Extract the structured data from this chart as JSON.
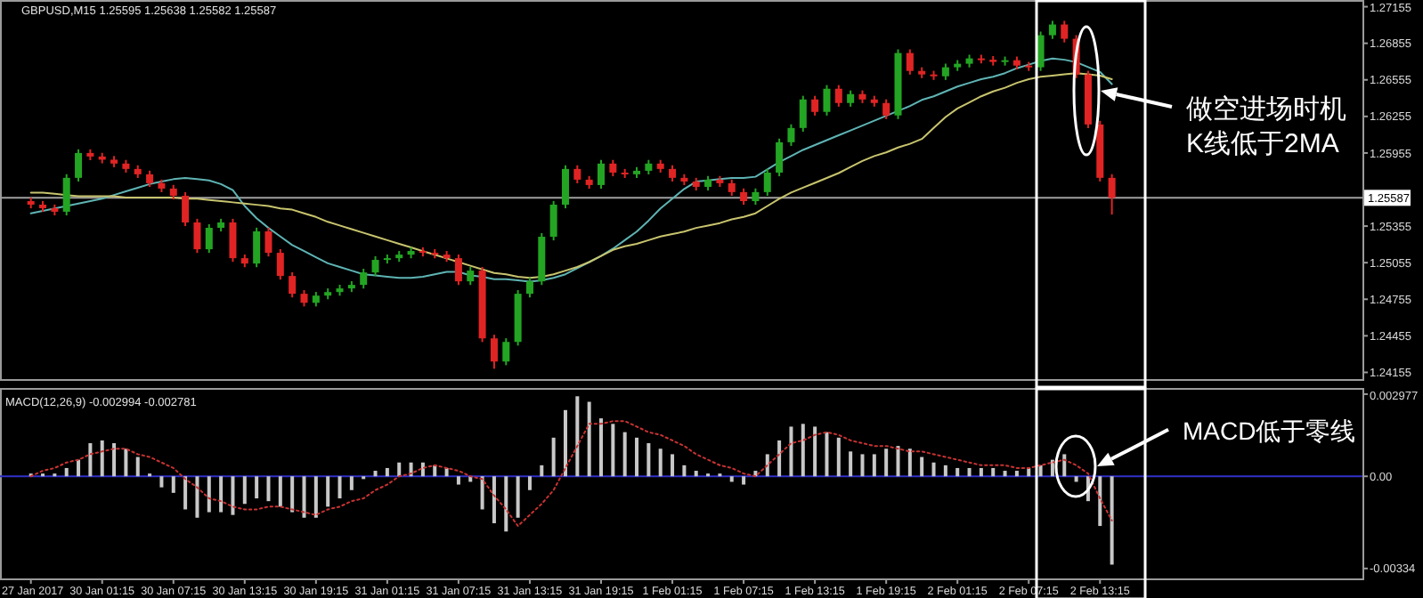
{
  "chart_data": [
    {
      "type": "candlestick",
      "title": "GBPUSD,M15  1.25595 1.25638 1.25582 1.25587",
      "categories": [
        null,
        null,
        null,
        null,
        null,
        null,
        null,
        null,
        null,
        null,
        null,
        null,
        null,
        null,
        null,
        null,
        null,
        null,
        null,
        null,
        null,
        null,
        null,
        null,
        null,
        null,
        null,
        null,
        null,
        null,
        null,
        null,
        null,
        null,
        null,
        null,
        null,
        null,
        null,
        null,
        null,
        null,
        null,
        null,
        null,
        null,
        null,
        null,
        null,
        null,
        null,
        null,
        null,
        null,
        null,
        null,
        null,
        null,
        null,
        null,
        null,
        null,
        null,
        null,
        null,
        null,
        null,
        null,
        null,
        null,
        null,
        null,
        null,
        null,
        null,
        null,
        null,
        null,
        null,
        null,
        null,
        null,
        null,
        null,
        null,
        null,
        null,
        null,
        null,
        null,
        null,
        null
      ],
      "ohlc": [
        [
          1.2556,
          1.2559,
          1.25501,
          1.25531
        ],
        [
          1.25531,
          1.25561,
          1.25472,
          1.25502
        ],
        [
          1.25502,
          1.25532,
          1.25443,
          1.25473
        ],
        [
          1.25473,
          1.25781,
          1.25443,
          1.25751
        ],
        [
          1.25751,
          1.25985,
          1.25721,
          1.25955
        ],
        [
          1.25955,
          1.25985,
          1.25896,
          1.25926
        ],
        [
          1.25926,
          1.25956,
          1.2587,
          1.259
        ],
        [
          1.259,
          1.2593,
          1.25838,
          1.25868
        ],
        [
          1.25868,
          1.25898,
          1.25794,
          1.25824
        ],
        [
          1.25824,
          1.25854,
          1.2575,
          1.2578
        ],
        [
          1.2578,
          1.2581,
          1.25677,
          1.25707
        ],
        [
          1.25707,
          1.25737,
          1.25633,
          1.25663
        ],
        [
          1.25663,
          1.25693,
          1.25574,
          1.25604
        ],
        [
          1.25604,
          1.25634,
          1.25355,
          1.25385
        ],
        [
          1.25385,
          1.25415,
          1.25135,
          1.25165
        ],
        [
          1.25165,
          1.25371,
          1.25135,
          1.25341
        ],
        [
          1.25341,
          1.25415,
          1.25311,
          1.25385
        ],
        [
          1.25385,
          1.25415,
          1.25062,
          1.25092
        ],
        [
          1.25092,
          1.25122,
          1.25018,
          1.25048
        ],
        [
          1.25048,
          1.25342,
          1.25018,
          1.25312
        ],
        [
          1.25312,
          1.25342,
          1.25106,
          1.25136
        ],
        [
          1.25136,
          1.25166,
          1.24916,
          1.24946
        ],
        [
          1.24946,
          1.24976,
          1.2477,
          1.248
        ],
        [
          1.248,
          1.2483,
          1.24696,
          1.24726
        ],
        [
          1.24726,
          1.24815,
          1.24696,
          1.24785
        ],
        [
          1.24785,
          1.24844,
          1.24755,
          1.24814
        ],
        [
          1.24814,
          1.24874,
          1.24784,
          1.24844
        ],
        [
          1.24844,
          1.24903,
          1.24814,
          1.24873
        ],
        [
          1.24873,
          1.25005,
          1.24843,
          1.24975
        ],
        [
          1.24975,
          1.25108,
          1.24945,
          1.25078
        ],
        [
          1.25078,
          1.25122,
          1.25048,
          1.25092
        ],
        [
          1.25092,
          1.25151,
          1.25062,
          1.25121
        ],
        [
          1.25121,
          1.25181,
          1.25091,
          1.25151
        ],
        [
          1.25151,
          1.25181,
          1.25106,
          1.25136
        ],
        [
          1.25136,
          1.25166,
          1.25091,
          1.25121
        ],
        [
          1.25121,
          1.25151,
          1.25062,
          1.25092
        ],
        [
          1.25092,
          1.25122,
          1.24872,
          1.24902
        ],
        [
          1.24902,
          1.2502,
          1.24872,
          1.2499
        ],
        [
          1.2499,
          1.2502,
          1.24404,
          1.24434
        ],
        [
          1.24434,
          1.24464,
          1.24185,
          1.24244
        ],
        [
          1.24244,
          1.24435,
          1.24214,
          1.24405
        ],
        [
          1.24405,
          1.2483,
          1.24375,
          1.248
        ],
        [
          1.248,
          1.24932,
          1.2477,
          1.24902
        ],
        [
          1.24902,
          1.25298,
          1.24872,
          1.25268
        ],
        [
          1.25268,
          1.25561,
          1.25238,
          1.25531
        ],
        [
          1.25531,
          1.25854,
          1.25501,
          1.25824
        ],
        [
          1.25824,
          1.25854,
          1.25706,
          1.25736
        ],
        [
          1.25736,
          1.25766,
          1.25662,
          1.25692
        ],
        [
          1.25692,
          1.25898,
          1.25662,
          1.25868
        ],
        [
          1.25868,
          1.25898,
          1.25764,
          1.25794
        ],
        [
          1.25794,
          1.25824,
          1.2575,
          1.2578
        ],
        [
          1.2578,
          1.25839,
          1.2575,
          1.25809
        ],
        [
          1.25809,
          1.25898,
          1.25779,
          1.25868
        ],
        [
          1.25868,
          1.25898,
          1.25794,
          1.25824
        ],
        [
          1.25824,
          1.25854,
          1.25721,
          1.25751
        ],
        [
          1.25751,
          1.25781,
          1.25691,
          1.25721
        ],
        [
          1.25721,
          1.25751,
          1.25647,
          1.25677
        ],
        [
          1.25677,
          1.25766,
          1.25647,
          1.25736
        ],
        [
          1.25736,
          1.25766,
          1.25677,
          1.25707
        ],
        [
          1.25707,
          1.25737,
          1.25604,
          1.25634
        ],
        [
          1.25634,
          1.25664,
          1.2553,
          1.2556
        ],
        [
          1.2556,
          1.25664,
          1.2553,
          1.25634
        ],
        [
          1.25634,
          1.25824,
          1.25604,
          1.25794
        ],
        [
          1.25794,
          1.26073,
          1.25764,
          1.26043
        ],
        [
          1.26043,
          1.2619,
          1.26013,
          1.2616
        ],
        [
          1.2616,
          1.26424,
          1.2613,
          1.26394
        ],
        [
          1.26394,
          1.26424,
          1.26262,
          1.26292
        ],
        [
          1.26292,
          1.26512,
          1.26262,
          1.26482
        ],
        [
          1.26482,
          1.26512,
          1.26335,
          1.26365
        ],
        [
          1.26365,
          1.26468,
          1.26335,
          1.26438
        ],
        [
          1.26438,
          1.26468,
          1.26364,
          1.26394
        ],
        [
          1.26394,
          1.26424,
          1.26335,
          1.26365
        ],
        [
          1.26365,
          1.26395,
          1.26233,
          1.26263
        ],
        [
          1.26263,
          1.26805,
          1.26233,
          1.26775
        ],
        [
          1.26775,
          1.26805,
          1.26598,
          1.26628
        ],
        [
          1.26628,
          1.26658,
          1.26569,
          1.26599
        ],
        [
          1.26599,
          1.26629,
          1.26554,
          1.26584
        ],
        [
          1.26584,
          1.26688,
          1.26554,
          1.26658
        ],
        [
          1.26658,
          1.26717,
          1.26628,
          1.26687
        ],
        [
          1.26687,
          1.26761,
          1.26657,
          1.26731
        ],
        [
          1.26731,
          1.26761,
          1.2669,
          1.2672
        ],
        [
          1.2672,
          1.2675,
          1.26672,
          1.26702
        ],
        [
          1.26702,
          1.26746,
          1.26672,
          1.26716
        ],
        [
          1.26716,
          1.26746,
          1.26642,
          1.26672
        ],
        [
          1.26672,
          1.26702,
          1.26628,
          1.26658
        ],
        [
          1.26658,
          1.26951,
          1.26628,
          1.26921
        ],
        [
          1.26921,
          1.27039,
          1.26891,
          1.27009
        ],
        [
          1.27009,
          1.27039,
          1.26862,
          1.26892
        ],
        [
          1.26892,
          1.26922,
          1.26569,
          1.26599
        ],
        [
          1.26599,
          1.26629,
          1.26159,
          1.26189
        ],
        [
          1.26189,
          1.26219,
          1.25721,
          1.25751
        ],
        [
          1.25751,
          1.25781,
          1.2545,
          1.25587
        ]
      ],
      "colors": [
        "#e02424",
        "#e02424",
        "#e02424",
        "#23a523",
        "#23a523",
        "#e02424",
        "#e02424",
        "#e02424",
        "#e02424",
        "#e02424",
        "#e02424",
        "#e02424",
        "#e02424",
        "#e02424",
        "#e02424",
        "#23a523",
        "#23a523",
        "#e02424",
        "#e02424",
        "#23a523",
        "#e02424",
        "#e02424",
        "#e02424",
        "#e02424",
        "#23a523",
        "#23a523",
        "#23a523",
        "#23a523",
        "#23a523",
        "#23a523",
        "#23a523",
        "#23a523",
        "#23a523",
        "#e02424",
        "#e02424",
        "#e02424",
        "#e02424",
        "#23a523",
        "#e02424",
        "#e02424",
        "#23a523",
        "#23a523",
        "#23a523",
        "#23a523",
        "#23a523",
        "#23a523",
        "#e02424",
        "#e02424",
        "#23a523",
        "#e02424",
        "#e02424",
        "#23a523",
        "#23a523",
        "#e02424",
        "#e02424",
        "#e02424",
        "#e02424",
        "#23a523",
        "#e02424",
        "#e02424",
        "#e02424",
        "#23a523",
        "#23a523",
        "#23a523",
        "#23a523",
        "#23a523",
        "#e02424",
        "#23a523",
        "#e02424",
        "#23a523",
        "#e02424",
        "#e02424",
        "#e02424",
        "#23a523",
        "#e02424",
        "#e02424",
        "#e02424",
        "#23a523",
        "#23a523",
        "#23a523",
        "#e02424",
        "#e02424",
        "#23a523",
        "#e02424",
        "#e02424",
        "#23a523",
        "#23a523",
        "#e02424",
        "#e02424",
        "#e02424",
        "#e02424",
        "#e02424"
      ],
      "series": [
        {
          "type": "line",
          "color": "#5fb4b4",
          "values": [
            1.2546,
            1.2548,
            1.255,
            1.2552,
            1.2554,
            1.2556,
            1.2558,
            1.2561,
            1.2564,
            1.2567,
            1.257,
            1.2572,
            1.2574,
            1.2575,
            1.2574,
            1.2573,
            1.257,
            1.2565,
            1.2552,
            1.2542,
            1.2534,
            1.2527,
            1.252,
            1.2515,
            1.251,
            1.2505,
            1.2502,
            1.2499,
            1.2496,
            1.2495,
            1.2494,
            1.2493,
            1.2493,
            1.2494,
            1.2496,
            1.2498,
            1.2498,
            1.2495,
            1.2494,
            1.2492,
            1.2492,
            1.2491,
            1.249,
            1.2491,
            1.2493,
            1.2496,
            1.2501,
            1.2506,
            1.2511,
            1.2517,
            1.2524,
            1.2531,
            1.254,
            1.255,
            1.2558,
            1.2566,
            1.2572,
            1.2573,
            1.2574,
            1.2575,
            1.2575,
            1.2576,
            1.2582,
            1.2588,
            1.2593,
            1.2598,
            1.2602,
            1.2606,
            1.261,
            1.2614,
            1.2618,
            1.2622,
            1.2626,
            1.263,
            1.2634,
            1.2639,
            1.2642,
            1.2646,
            1.265,
            1.2653,
            1.2656,
            1.2658,
            1.2661,
            1.2665,
            1.2668,
            1.2671,
            1.2673,
            1.2672,
            1.267,
            1.2666,
            1.2662,
            1.2652
          ]
        },
        {
          "type": "line",
          "color": "#c8c46e",
          "values": [
            1.2563,
            1.2563,
            1.2562,
            1.2561,
            1.256,
            1.256,
            1.256,
            1.256,
            1.2559,
            1.2559,
            1.2559,
            1.2559,
            1.2559,
            1.2558,
            1.2558,
            1.2557,
            1.2556,
            1.2555,
            1.2554,
            1.2553,
            1.2552,
            1.255,
            1.2549,
            1.2546,
            1.2543,
            1.2539,
            1.2536,
            1.2533,
            1.253,
            1.2527,
            1.2524,
            1.2521,
            1.2518,
            1.2515,
            1.2512,
            1.2509,
            1.2506,
            1.2503,
            1.25,
            1.2497,
            1.2496,
            1.2494,
            1.2493,
            1.2494,
            1.2496,
            1.2499,
            1.2502,
            1.2506,
            1.2511,
            1.2516,
            1.2519,
            1.2521,
            1.2524,
            1.2527,
            1.2529,
            1.2531,
            1.2534,
            1.2536,
            1.2538,
            1.2541,
            1.2543,
            1.2546,
            1.2552,
            1.2558,
            1.2563,
            1.2567,
            1.2571,
            1.2575,
            1.2579,
            1.2584,
            1.2589,
            1.2593,
            1.2596,
            1.26,
            1.2603,
            1.2607,
            1.2616,
            1.2625,
            1.2632,
            1.2637,
            1.2642,
            1.2646,
            1.2649,
            1.2653,
            1.2656,
            1.2658,
            1.2659,
            1.266,
            1.2661,
            1.266,
            1.2659,
            1.2656
          ]
        }
      ],
      "ylim": [
        1.241,
        1.2721
      ],
      "yticks": [
        1.27155,
        1.26855,
        1.26555,
        1.26255,
        1.25955,
        1.25355,
        1.25055,
        1.24755,
        1.24455,
        1.24155
      ],
      "tick_labels": "y",
      "ref_lines": [
        {
          "axis": "y",
          "value": 1.25587,
          "label": "1.25587",
          "color": "#a0a0a0"
        }
      ],
      "annotations": [
        "做空进场时机\nK线低于2MA"
      ]
    },
    {
      "type": "bar",
      "title": "MACD(12,26,9) -0.002994 -0.002781",
      "categories": [
        "27 Jan 2017",
        null,
        null,
        null,
        null,
        null,
        "30 Jan 01:15",
        null,
        null,
        null,
        null,
        null,
        "30 Jan 07:15",
        null,
        null,
        null,
        null,
        null,
        "30 Jan 13:15",
        null,
        null,
        null,
        null,
        null,
        "30 Jan 19:15",
        null,
        null,
        null,
        null,
        null,
        "31 Jan 01:15",
        null,
        null,
        null,
        null,
        null,
        "31 Jan 07:15",
        null,
        null,
        null,
        null,
        null,
        "31 Jan 13:15",
        null,
        null,
        null,
        null,
        null,
        "31 Jan 19:15",
        null,
        null,
        null,
        null,
        null,
        "1 Feb 01:15",
        null,
        null,
        null,
        null,
        null,
        "1 Feb 07:15",
        null,
        null,
        null,
        null,
        null,
        "1 Feb 13:15",
        null,
        null,
        null,
        null,
        null,
        "1 Feb 19:15",
        null,
        null,
        null,
        null,
        null,
        "2 Feb 01:15",
        null,
        null,
        null,
        null,
        null,
        "2 Feb 07:15",
        null,
        null,
        null,
        null,
        null,
        "2 Feb 13:15",
        null
      ],
      "series": [
        {
          "color": "#c8c8c8",
          "values": [
            0.0001,
            0.0001,
            0.0001,
            0.0003,
            0.0006,
            0.0012,
            0.0013,
            0.0012,
            0.001,
            0.0007,
            0.0001,
            -0.0004,
            -0.0006,
            -0.0012,
            -0.0015,
            -0.0013,
            -0.0013,
            -0.0014,
            -0.001,
            -0.0008,
            -0.0009,
            -0.0011,
            -0.0013,
            -0.0015,
            -0.0015,
            -0.0011,
            -0.0008,
            -0.0005,
            -0.0001,
            0.0002,
            0.0003,
            0.0005,
            0.0005,
            0.0005,
            0.0004,
            0.0003,
            -0.0003,
            -0.0002,
            -0.0012,
            -0.0017,
            -0.002,
            -0.0015,
            -0.0005,
            0.0004,
            0.0014,
            0.0024,
            0.0029,
            0.0027,
            0.0021,
            0.0019,
            0.0016,
            0.0014,
            0.0012,
            0.001,
            0.0008,
            0.0004,
            0.0002,
            0.0001,
            0.0001,
            -0.0002,
            -0.0003,
            0.0002,
            0.0008,
            0.0013,
            0.0018,
            0.0019,
            0.0018,
            0.0016,
            0.0014,
            0.0009,
            0.0008,
            0.0008,
            0.001,
            0.0011,
            0.001,
            0.0007,
            0.0005,
            0.0004,
            0.0003,
            0.0003,
            0.0003,
            0.0003,
            0.0002,
            0.0002,
            0.0003,
            0.0004,
            0.0006,
            0.0008,
            -0.0002,
            -0.0009,
            -0.0018,
            -0.0032
          ]
        },
        {
          "type": "line",
          "line_style": "dotted",
          "color": "#c83232",
          "values": [
            0,
            0.0002,
            0.0003,
            0.0005,
            0.0006,
            0.0008,
            0.0009,
            0.001,
            0.001,
            0.0008,
            0.0007,
            0.0005,
            0.0003,
            -0.0001,
            -0.0004,
            -0.0008,
            -0.0009,
            -0.0011,
            -0.0012,
            -0.0012,
            -0.0011,
            -0.0011,
            -0.0012,
            -0.0013,
            -0.0014,
            -0.0012,
            -0.0011,
            -0.0009,
            -0.0008,
            -0.0005,
            -0.0003,
            0,
            0.0001,
            0.0003,
            0.0004,
            0.0003,
            0.0002,
            0,
            -0.0001,
            -0.0007,
            -0.0012,
            -0.0018,
            -0.0014,
            -0.001,
            -0.0005,
            0.0003,
            0.0011,
            0.0019,
            0.0019,
            0.002,
            0.002,
            0.0018,
            0.0016,
            0.0015,
            0.0013,
            0.0011,
            0.0008,
            0.0006,
            0.0004,
            0.0003,
            0.0001,
            0,
            0.0004,
            0.0008,
            0.0012,
            0.0013,
            0.0015,
            0.0016,
            0.0015,
            0.0013,
            0.0012,
            0.0011,
            0.0011,
            0.001,
            0.0009,
            0.0009,
            0.0008,
            0.0007,
            0.0006,
            0.0005,
            0.0004,
            0.0004,
            0.0004,
            0.0003,
            0.0003,
            0.0004,
            0.0005,
            0.0006,
            0.0004,
            0.0001,
            -0.0008,
            -0.0016
          ]
        }
      ],
      "ylim": [
        -0.0037,
        0.0032
      ],
      "yticks": [
        0.002977,
        {
          "value": 0,
          "label": "0.00"
        },
        -0.00334
      ],
      "ref_lines": [
        {
          "axis": "y",
          "value": 0,
          "color": "#3030c8"
        }
      ],
      "annotations": [
        "MACD低于零线"
      ]
    }
  ]
}
